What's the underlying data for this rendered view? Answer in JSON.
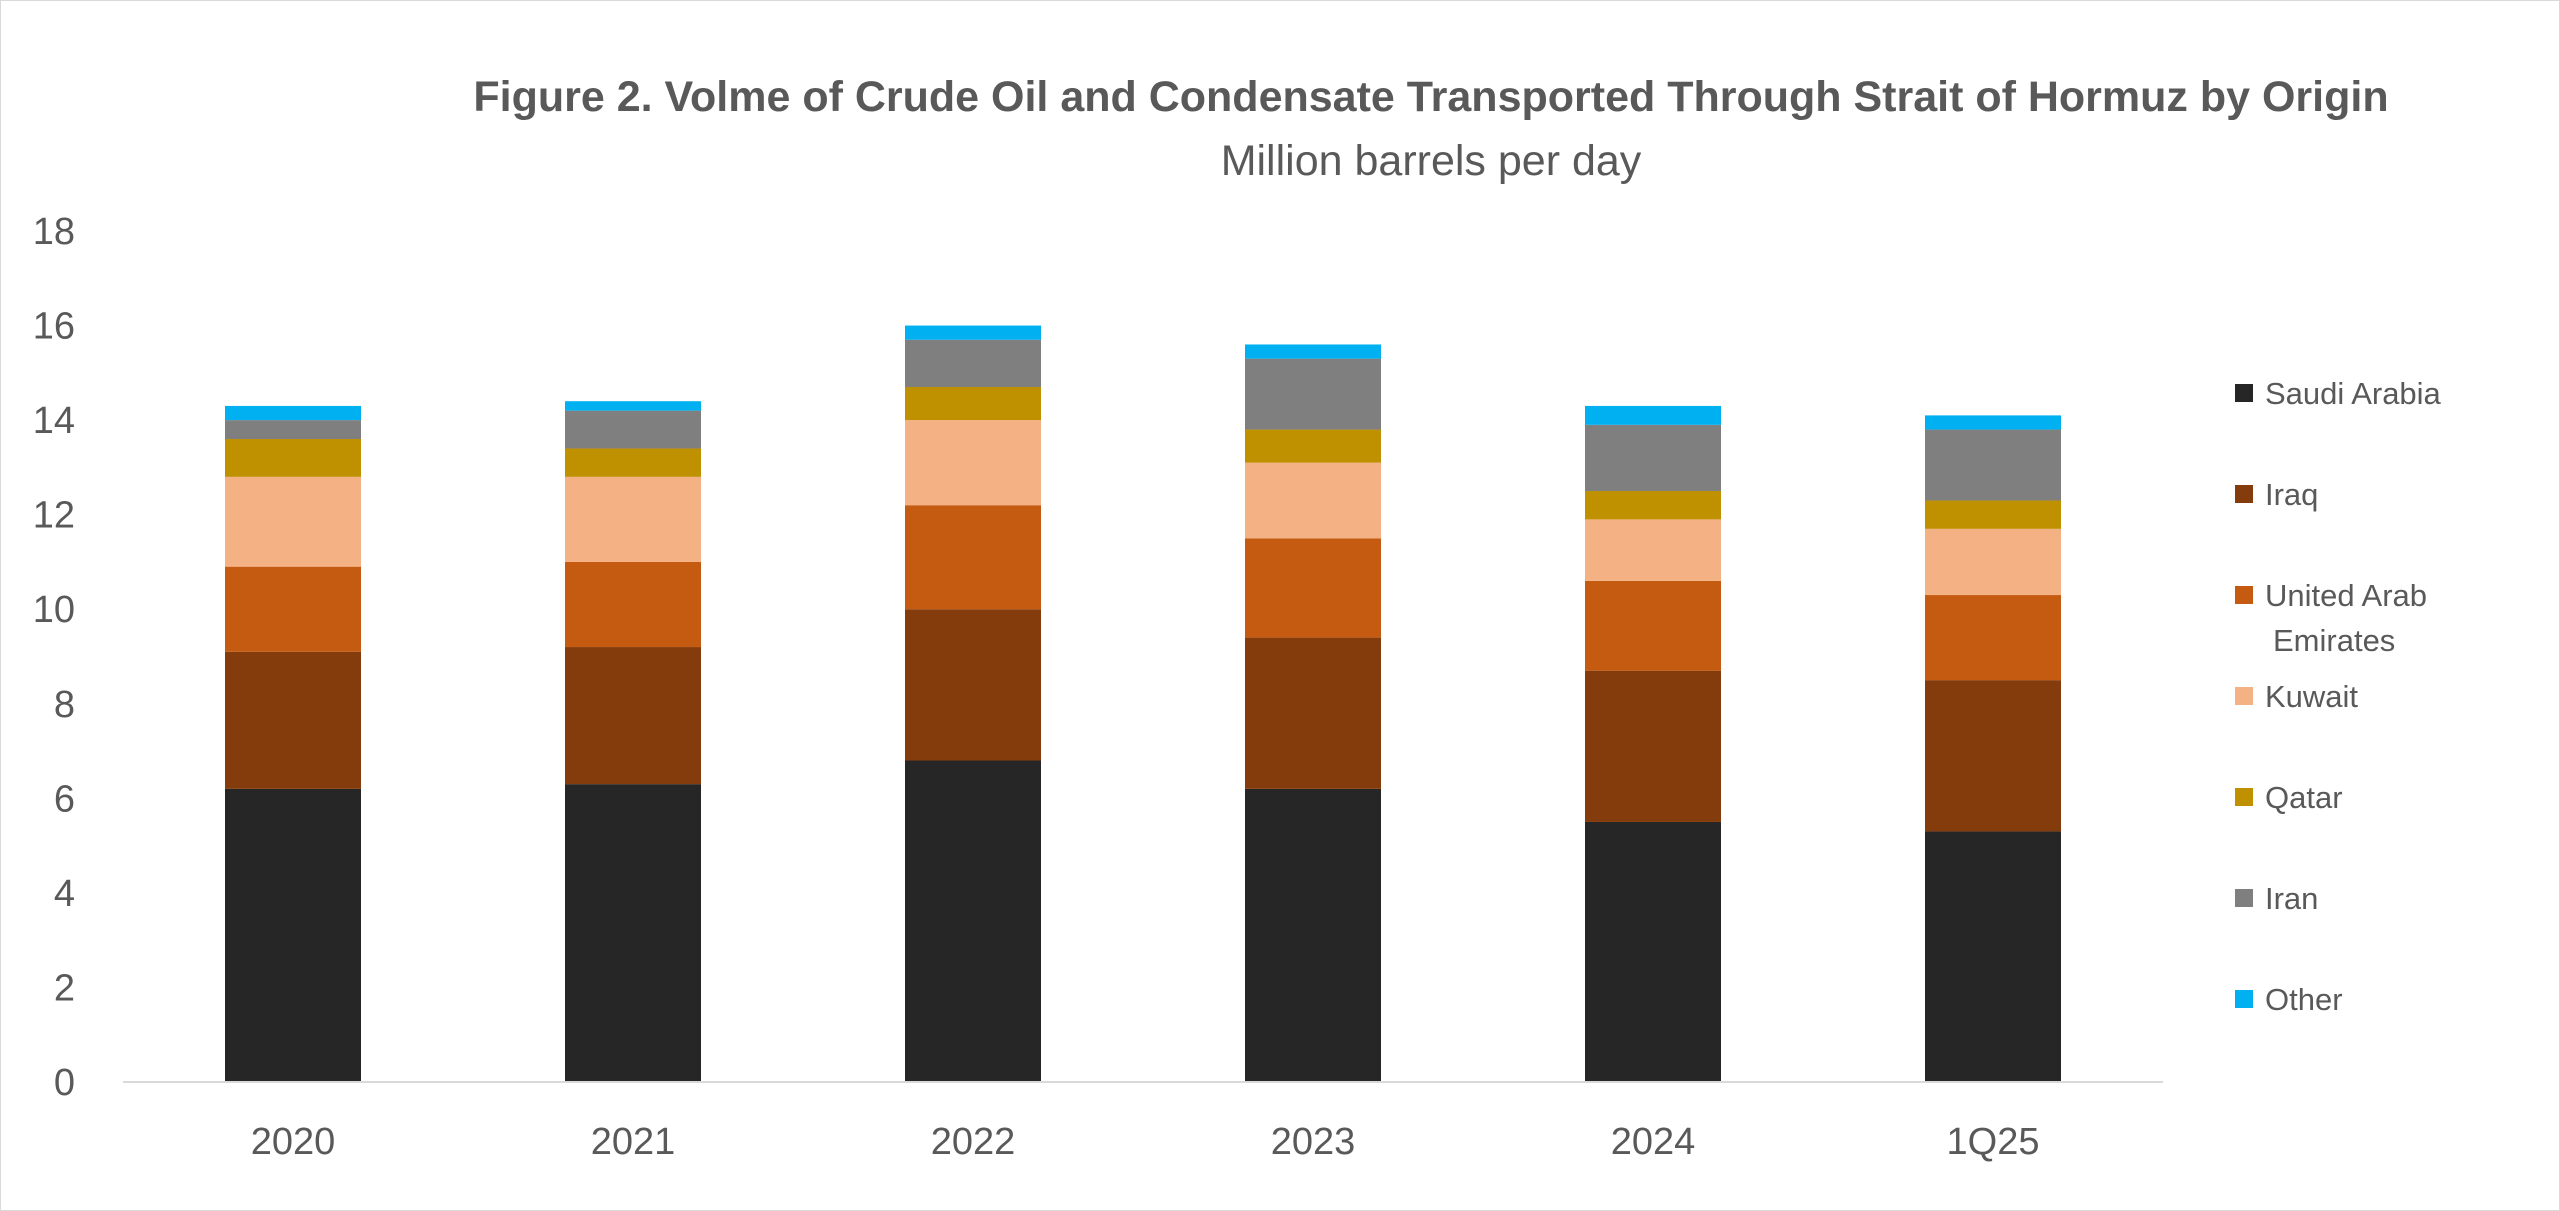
{
  "chart_data": {
    "type": "bar",
    "stacked": true,
    "title": "Figure 2. Volme of Crude Oil and Condensate Transported Through Strait of Hormuz by Origin",
    "subtitle": "Million barrels per day",
    "xlabel": "",
    "ylabel": "",
    "ylim": [
      0,
      18
    ],
    "yticks": [
      0,
      2,
      4,
      6,
      8,
      10,
      12,
      14,
      16,
      18
    ],
    "grid": false,
    "legend_position": "right",
    "categories": [
      "2020",
      "2021",
      "2022",
      "2023",
      "2024",
      "1Q25"
    ],
    "series": [
      {
        "name": "Saudi Arabia",
        "color": "#262626",
        "values": [
          6.2,
          6.3,
          6.8,
          6.2,
          5.5,
          5.3
        ]
      },
      {
        "name": "Iraq",
        "color": "#843c0c",
        "values": [
          2.9,
          2.9,
          3.2,
          3.2,
          3.2,
          3.2
        ]
      },
      {
        "name": "United Arab Emirates",
        "legend_lines": [
          "United Arab",
          "Emirates"
        ],
        "color": "#c55a11",
        "values": [
          1.8,
          1.8,
          2.2,
          2.1,
          1.9,
          1.8
        ]
      },
      {
        "name": "Kuwait",
        "color": "#f4b183",
        "values": [
          1.9,
          1.8,
          1.8,
          1.6,
          1.3,
          1.4
        ]
      },
      {
        "name": "Qatar",
        "color": "#bf9000",
        "values": [
          0.8,
          0.6,
          0.7,
          0.7,
          0.6,
          0.6
        ]
      },
      {
        "name": "Iran",
        "color": "#7f7f7f",
        "values": [
          0.4,
          0.8,
          1.0,
          1.5,
          1.4,
          1.5
        ]
      },
      {
        "name": "Other",
        "color": "#00b0f0",
        "values": [
          0.3,
          0.2,
          0.3,
          0.3,
          0.4,
          0.3
        ]
      }
    ]
  },
  "colors": {
    "axis_line": "#d9d9d9",
    "text": "#595959"
  }
}
